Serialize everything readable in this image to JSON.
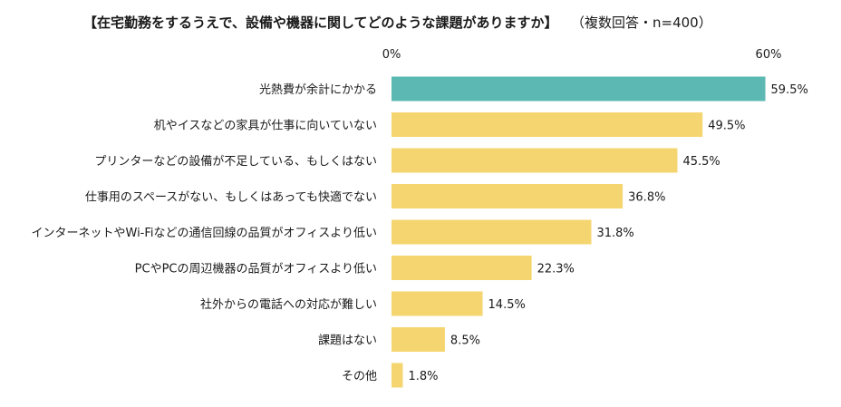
{
  "chart_data": {
    "type": "bar",
    "orientation": "horizontal",
    "title": "【在宅勤務をするうえで、設備や機器に関してどのような課題がありますか】",
    "subtitle": "（複数回答・n=400）",
    "categories": [
      "光熱費が余計にかかる",
      "机やイスなどの家具が仕事に向いていない",
      "プリンターなどの設備が不足している、もしくはない",
      "仕事用のスペースがない、もしくはあっても快適でない",
      "インターネットやWi-Fiなどの通信回線の品質がオフィスより低い",
      "PCやPCの周辺機器の品質がオフィスより低い",
      "社外からの電話への対応が難しい",
      "課題はない",
      "その他"
    ],
    "values": [
      59.5,
      49.5,
      45.5,
      36.8,
      31.8,
      22.3,
      14.5,
      8.5,
      1.8
    ],
    "value_labels": [
      "59.5%",
      "49.5%",
      "45.5%",
      "36.8%",
      "31.8%",
      "22.3%",
      "14.5%",
      "8.5%",
      "1.8%"
    ],
    "xlim": [
      0,
      60
    ],
    "ticks": [
      {
        "value": 0,
        "label": "0%"
      },
      {
        "value": 60,
        "label": "60%"
      }
    ],
    "grid": false,
    "legend": "none",
    "highlight_index": 0,
    "colors": {
      "highlight": "#5cb8b2",
      "default": "#f4d56f"
    }
  }
}
